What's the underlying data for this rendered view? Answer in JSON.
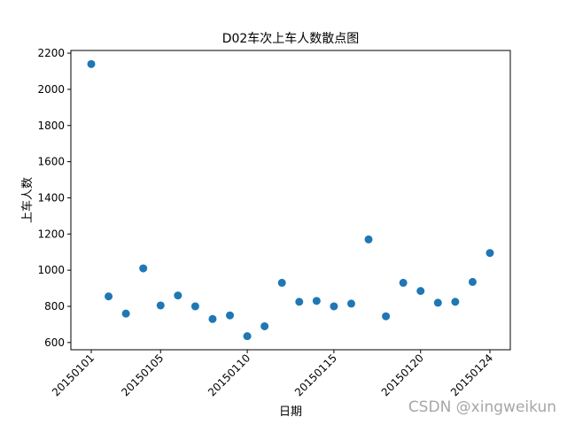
{
  "chart_data": {
    "type": "scatter",
    "title": "D02车次上车人数散点图",
    "xlabel": "日期",
    "ylabel": "上车人数",
    "x": [
      "20150101",
      "20150102",
      "20150103",
      "20150104",
      "20150105",
      "20150106",
      "20150107",
      "20150108",
      "20150109",
      "20150110",
      "20150111",
      "20150112",
      "20150113",
      "20150114",
      "20150115",
      "20150116",
      "20150117",
      "20150118",
      "20150119",
      "20150120",
      "20150121",
      "20150122",
      "20150123",
      "20150124"
    ],
    "values": [
      2140,
      855,
      760,
      1010,
      805,
      860,
      800,
      730,
      750,
      635,
      690,
      930,
      825,
      830,
      800,
      815,
      1170,
      745,
      930,
      885,
      820,
      825,
      935,
      1095
    ],
    "xticks": [
      "20150101",
      "20150105",
      "20150110",
      "20150115",
      "20150120",
      "20150124"
    ],
    "yticks": [
      600,
      800,
      1000,
      1200,
      1400,
      1600,
      1800,
      2000,
      2200
    ],
    "ylim": [
      560,
      2215
    ],
    "color": "#1f77b4",
    "grid": false
  },
  "watermark": "CSDN @xingweikun"
}
